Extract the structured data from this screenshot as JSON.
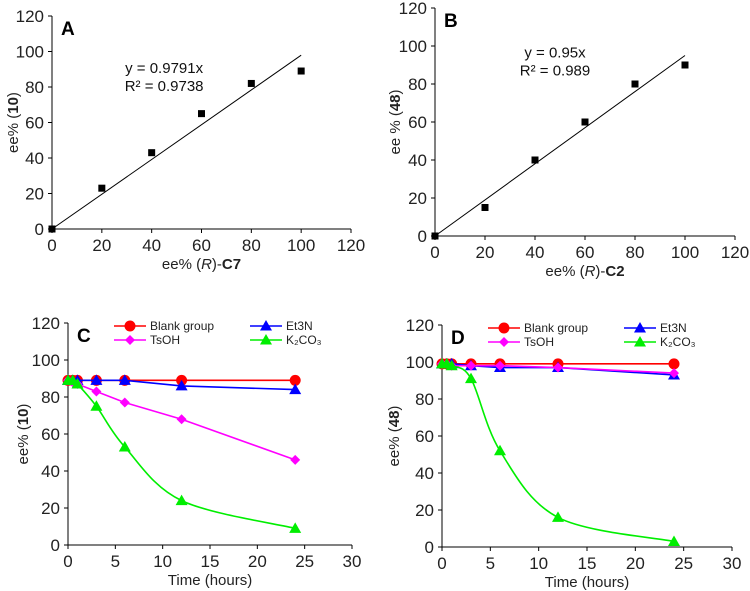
{
  "chart_data": [
    {
      "type": "scatter",
      "panel": "A",
      "xlabel": {
        "pre": "ee% (",
        "italic": "R",
        "mid": ")-",
        "bold": "C7",
        "post": ""
      },
      "ylabel": {
        "pre": "ee% (",
        "bold": "10",
        "post": ")"
      },
      "xlim": [
        0,
        120
      ],
      "ylim": [
        0,
        120
      ],
      "xticks": [
        0,
        20,
        40,
        60,
        80,
        100,
        120
      ],
      "yticks": [
        0,
        20,
        40,
        60,
        80,
        100,
        120
      ],
      "x": [
        0,
        20,
        40,
        60,
        80,
        100
      ],
      "y": [
        0,
        23,
        43,
        65,
        82,
        89
      ],
      "trendline": {
        "slope": 0.9791,
        "xrange": [
          0,
          100
        ]
      },
      "equation": "y = 0.9791x",
      "r2": "R² = 0.9738"
    },
    {
      "type": "scatter",
      "panel": "B",
      "xlabel": {
        "pre": "ee% (",
        "italic": "R",
        "mid": ")-",
        "bold": "C2",
        "post": ""
      },
      "ylabel": {
        "pre": "ee % (",
        "bold": "48",
        "post": ")"
      },
      "xlim": [
        0,
        120
      ],
      "ylim": [
        0,
        120
      ],
      "xticks": [
        0,
        20,
        40,
        60,
        80,
        100,
        120
      ],
      "yticks": [
        0,
        20,
        40,
        60,
        80,
        100,
        120
      ],
      "x": [
        0,
        20,
        40,
        60,
        80,
        100
      ],
      "y": [
        0,
        15,
        40,
        60,
        80,
        90
      ],
      "trendline": {
        "slope": 0.95,
        "xrange": [
          0,
          100
        ]
      },
      "equation": "y = 0.95x",
      "r2": "R² = 0.989"
    },
    {
      "type": "line",
      "panel": "C",
      "xlabel": {
        "pre": "Time (hours)",
        "bold": "",
        "post": ""
      },
      "ylabel": {
        "pre": "ee% (",
        "bold": "10",
        "post": ")"
      },
      "xlim": [
        0,
        30
      ],
      "ylim": [
        0,
        120
      ],
      "xticks": [
        0,
        5,
        10,
        15,
        20,
        25,
        30
      ],
      "yticks": [
        0,
        20,
        40,
        60,
        80,
        100,
        120
      ],
      "x": [
        0,
        0.5,
        1,
        3,
        6,
        12,
        24
      ],
      "series": [
        {
          "name": "Blank group",
          "color": "#ff0000",
          "marker": "circle",
          "smooth": false,
          "values": [
            89,
            89,
            89,
            89,
            89,
            89,
            89
          ]
        },
        {
          "name": "Et3N",
          "color": "#0000ff",
          "marker": "triangle",
          "smooth": false,
          "values": [
            89,
            89,
            89,
            89,
            89,
            86,
            84
          ]
        },
        {
          "name": "TsOH",
          "color": "#ff00ff",
          "marker": "diamond",
          "smooth": false,
          "values": [
            89,
            88,
            87,
            83,
            77,
            68,
            46
          ]
        },
        {
          "name": "K₂CO₃",
          "color": "#00ee00",
          "marker": "triangle",
          "smooth": true,
          "values": [
            89,
            89,
            87,
            75,
            53,
            24,
            9
          ]
        }
      ],
      "legend": "top"
    },
    {
      "type": "line",
      "panel": "D",
      "xlabel": {
        "pre": "Time (hours)",
        "bold": "",
        "post": ""
      },
      "ylabel": {
        "pre": "ee% (",
        "bold": "48",
        "post": ")"
      },
      "xlim": [
        0,
        30
      ],
      "ylim": [
        0,
        120
      ],
      "xticks": [
        0,
        5,
        10,
        15,
        20,
        25,
        30
      ],
      "yticks": [
        0,
        20,
        40,
        60,
        80,
        100,
        120
      ],
      "x": [
        0,
        0.5,
        1,
        3,
        6,
        12,
        24
      ],
      "series": [
        {
          "name": "Blank group",
          "color": "#ff0000",
          "marker": "circle",
          "smooth": false,
          "values": [
            99,
            99,
            99,
            99,
            99,
            99,
            99
          ]
        },
        {
          "name": "Et3N",
          "color": "#0000ff",
          "marker": "triangle",
          "smooth": false,
          "values": [
            99,
            99,
            99,
            98,
            97,
            97,
            93
          ]
        },
        {
          "name": "TsOH",
          "color": "#ff00ff",
          "marker": "diamond",
          "smooth": false,
          "values": [
            99,
            99,
            98,
            98,
            98,
            97,
            94
          ]
        },
        {
          "name": "K₂CO₃",
          "color": "#00ee00",
          "marker": "triangle",
          "smooth": true,
          "values": [
            99,
            99,
            98,
            91,
            52,
            16,
            3
          ]
        }
      ],
      "legend": "top"
    }
  ]
}
